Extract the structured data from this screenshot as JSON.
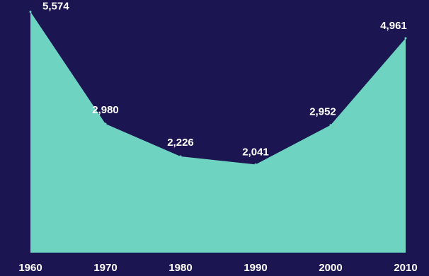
{
  "chart_data": {
    "type": "area",
    "title": "",
    "xlabel": "",
    "ylabel": "",
    "x": [
      1960,
      1970,
      1980,
      1990,
      2000,
      2010
    ],
    "x_labels": [
      "1960",
      "1970",
      "1980",
      "1990",
      "2000",
      "2010"
    ],
    "values": [
      5574,
      2980,
      2226,
      2041,
      2952,
      4961
    ],
    "data_labels": [
      "5,574",
      "2,980",
      "2,226",
      "2,041",
      "2,952",
      "4,961"
    ],
    "ylim": [
      0,
      5600
    ],
    "grid": false,
    "legend": "none",
    "colors": {
      "background": "#1b1651",
      "area_fill": "#6fd3c1",
      "text": "#ffffff"
    }
  }
}
